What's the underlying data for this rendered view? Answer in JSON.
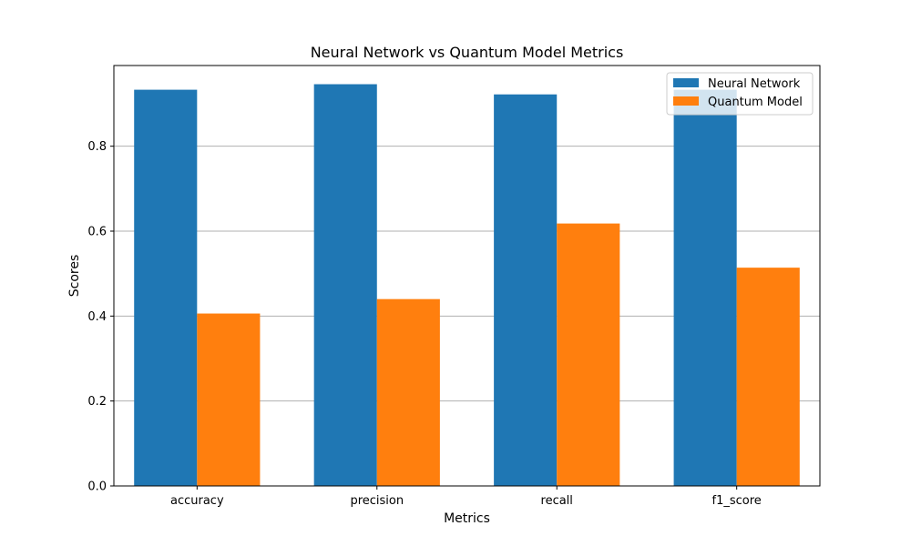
{
  "chart_data": {
    "type": "bar",
    "title": "Neural Network vs Quantum Model Metrics",
    "xlabel": "Metrics",
    "ylabel": "Scores",
    "categories": [
      "accuracy",
      "precision",
      "recall",
      "f1_score"
    ],
    "series": [
      {
        "name": "Neural Network",
        "color": "#1f77b4",
        "values": [
          0.933,
          0.946,
          0.922,
          0.933
        ]
      },
      {
        "name": "Quantum Model",
        "color": "#ff7f0e",
        "values": [
          0.406,
          0.44,
          0.618,
          0.514
        ]
      }
    ],
    "ylim": [
      0,
      0.99
    ],
    "yticks": [
      "0.0",
      "0.2",
      "0.4",
      "0.6",
      "0.8"
    ],
    "grid": "y",
    "legend": "top-right"
  }
}
